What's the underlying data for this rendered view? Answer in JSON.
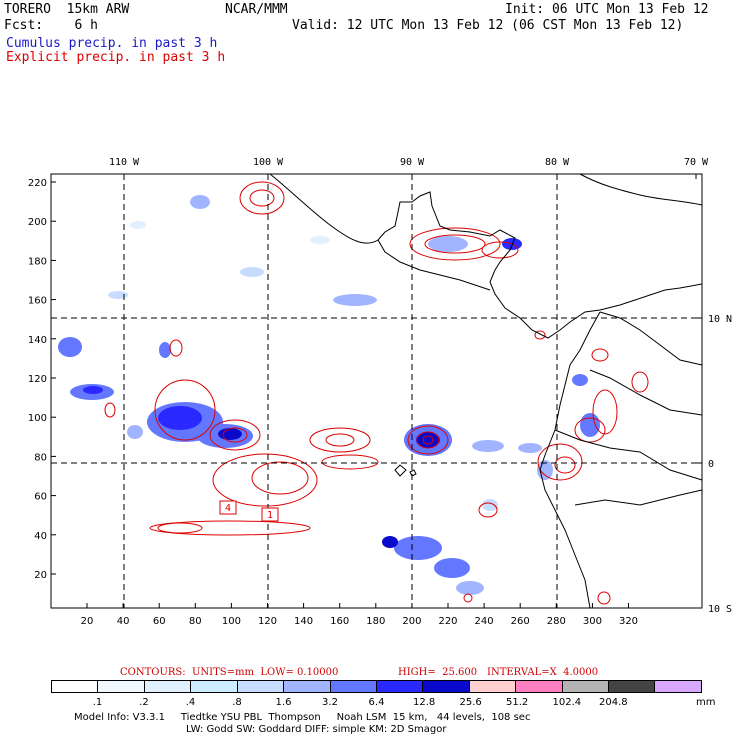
{
  "header": {
    "model": "TORERO  15km ARW",
    "org": "NCAR/MMM",
    "init": "Init: 06 UTC Mon 13 Feb 12",
    "fcst": "Fcst:    6 h",
    "valid": "Valid: 12 UTC Mon 13 Feb 12 (06 CST Mon 13 Feb 12)",
    "cumulus": "Cumulus precip. in past 3 h",
    "explicit": "Explicit precip. in past 3 h",
    "cumulus_color": "#1a1acc",
    "explicit_color": "#dd0000"
  },
  "map": {
    "lon_labels": [
      "110 W",
      "100 W",
      "90 W",
      "80 W",
      "70 W"
    ],
    "lat_labels": [
      "10 N",
      "0",
      "10 S"
    ],
    "x_ticks": [
      "20",
      "40",
      "60",
      "80",
      "100",
      "120",
      "140",
      "160",
      "180",
      "200",
      "220",
      "240",
      "260",
      "280",
      "300",
      "320"
    ],
    "y_ticks": [
      "220",
      "200",
      "180",
      "160",
      "140",
      "120",
      "100",
      "80",
      "60",
      "40",
      "20"
    ],
    "contour_labels": [
      "4",
      "1"
    ]
  },
  "contour_caption": {
    "contours": "CONTOURS:  UNITS=mm  LOW= 0.10000",
    "high": "HIGH=  25.600",
    "interval": "INTERVAL=X  4.0000"
  },
  "colorbar": {
    "labels": [
      ".1",
      ".2",
      ".4",
      ".8",
      "1.6",
      "3.2",
      "6.4",
      "12.8",
      "25.6",
      "51.2",
      "102.4",
      "204.8"
    ],
    "unit": "mm",
    "colors": [
      "#ffffff",
      "#f0f8ff",
      "#e0f0ff",
      "#ccecff",
      "#c8dcff",
      "#a0b4ff",
      "#6478ff",
      "#2828ff",
      "#0a0acc",
      "#ffd0d0",
      "#ff80c0",
      "#b4b4b4",
      "#444444",
      "#d8a8ff"
    ]
  },
  "footer": {
    "line1": "Model Info: V3.3.1     Tiedtke YSU PBL  Thompson     Noah LSM  15 km,   44 levels,  108 sec",
    "line2": "LW: Godd SW: Goddard DIFF: simple KM: 2D Smagor"
  }
}
